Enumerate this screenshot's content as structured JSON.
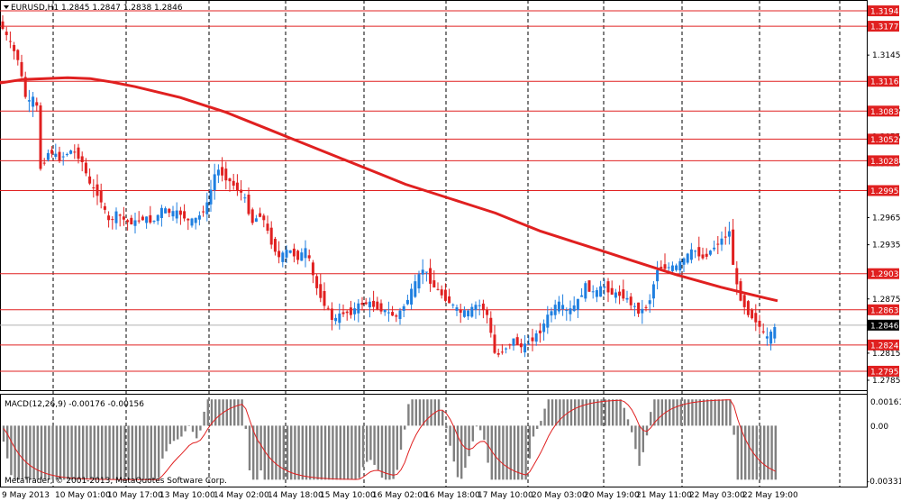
{
  "header": {
    "symbol_label": "EURUSD,H1",
    "ohlc": "1.2845 1.2847 1.2838 1.2846",
    "arrow_icon": "triangle-down-icon"
  },
  "macd": {
    "label": "MACD(12,26,9) -0.00176 -0.00156",
    "top_tick": "0.00161",
    "zero_tick": "0.00",
    "bottom_tick": "-0.00331"
  },
  "copyright": "MetaTrader, © 2001-2013, MetaQuotes Software Corp.",
  "colors": {
    "bull": "#1f7fe0",
    "bear": "#e02020",
    "ma": "#e02020",
    "level_line": "#e02020",
    "histogram": "#808080",
    "signal": "#e02020",
    "grid": "#000000"
  },
  "chart_data": {
    "type": "line",
    "title": "EURUSD,H1",
    "ylim": [
      1.2775,
      1.3204
    ],
    "price_levels": [
      {
        "value": 1.3194,
        "label": "1.3194"
      },
      {
        "value": 1.3177,
        "label": "1.3177"
      },
      {
        "value": 1.3116,
        "label": "1.3116"
      },
      {
        "value": 1.3083,
        "label": "1.3083"
      },
      {
        "value": 1.3052,
        "label": "1.3052"
      },
      {
        "value": 1.3028,
        "label": "1.3028"
      },
      {
        "value": 1.2995,
        "label": "1.2995"
      },
      {
        "value": 1.2903,
        "label": "1.2903"
      },
      {
        "value": 1.2863,
        "label": "1.2863"
      },
      {
        "value": 1.2824,
        "label": "1.2824"
      },
      {
        "value": 1.2795,
        "label": "1.2795"
      }
    ],
    "current_price": {
      "value": 1.2846,
      "label": "1.2846"
    },
    "y_ticks": [
      {
        "value": 1.3145,
        "label": "1.3145"
      },
      {
        "value": 1.3085,
        "label": "1.3085"
      },
      {
        "value": 1.3055,
        "label": "1.3055"
      },
      {
        "value": 1.3025,
        "label": "1.3025"
      },
      {
        "value": 1.2965,
        "label": "1.2965"
      },
      {
        "value": 1.2935,
        "label": "1.2935"
      },
      {
        "value": 1.2875,
        "label": "1.2875"
      },
      {
        "value": 1.2815,
        "label": "1.2815"
      },
      {
        "value": 1.2785,
        "label": "1.2785"
      }
    ],
    "x_labels": [
      "9 May 2013",
      "10 May 01:00",
      "10 May 17:00",
      "13 May 10:00",
      "14 May 02:00",
      "14 May 18:00",
      "15 May 10:00",
      "16 May 02:00",
      "16 May 18:00",
      "17 May 10:00",
      "20 May 03:00",
      "20 May 19:00",
      "21 May 11:00",
      "22 May 03:00",
      "22 May 19:00"
    ],
    "ma_path": [
      [
        0,
        1.3114
      ],
      [
        25,
        1.3118
      ],
      [
        50,
        1.3119
      ],
      [
        75,
        1.312
      ],
      [
        100,
        1.3119
      ],
      [
        125,
        1.3115
      ],
      [
        150,
        1.311
      ],
      [
        175,
        1.3104
      ],
      [
        200,
        1.3098
      ],
      [
        225,
        1.309
      ],
      [
        250,
        1.3082
      ],
      [
        275,
        1.3072
      ],
      [
        300,
        1.3062
      ],
      [
        325,
        1.3052
      ],
      [
        350,
        1.3042
      ],
      [
        375,
        1.3032
      ],
      [
        400,
        1.3022
      ],
      [
        425,
        1.3012
      ],
      [
        450,
        1.3002
      ],
      [
        475,
        1.2994
      ],
      [
        500,
        1.2986
      ],
      [
        525,
        1.2978
      ],
      [
        550,
        1.297
      ],
      [
        575,
        1.296
      ],
      [
        600,
        1.295
      ],
      [
        625,
        1.2942
      ],
      [
        650,
        1.2934
      ],
      [
        675,
        1.2926
      ],
      [
        700,
        1.2918
      ],
      [
        725,
        1.291
      ],
      [
        750,
        1.2902
      ],
      [
        775,
        1.2895
      ],
      [
        800,
        1.2888
      ],
      [
        825,
        1.2882
      ],
      [
        850,
        1.2876
      ],
      [
        863,
        1.2873
      ]
    ],
    "price_path": [
      [
        0,
        1.318
      ],
      [
        10,
        1.316
      ],
      [
        20,
        1.314
      ],
      [
        30,
        1.309
      ],
      [
        40,
        1.31
      ],
      [
        45,
        1.302
      ],
      [
        55,
        1.304
      ],
      [
        65,
        1.303
      ],
      [
        80,
        1.304
      ],
      [
        90,
        1.303
      ],
      [
        100,
        1.3
      ],
      [
        110,
        1.299
      ],
      [
        120,
        1.296
      ],
      [
        130,
        1.297
      ],
      [
        140,
        1.296
      ],
      [
        150,
        1.296
      ],
      [
        160,
        1.2965
      ],
      [
        170,
        1.296
      ],
      [
        180,
        1.2975
      ],
      [
        190,
        1.297
      ],
      [
        200,
        1.297
      ],
      [
        210,
        1.296
      ],
      [
        220,
        1.2965
      ],
      [
        230,
        1.298
      ],
      [
        240,
        1.302
      ],
      [
        250,
        1.301
      ],
      [
        260,
        1.3
      ],
      [
        270,
        1.299
      ],
      [
        280,
        1.296
      ],
      [
        290,
        1.297
      ],
      [
        300,
        1.294
      ],
      [
        310,
        1.292
      ],
      [
        320,
        1.293
      ],
      [
        330,
        1.292
      ],
      [
        340,
        1.293
      ],
      [
        350,
        1.289
      ],
      [
        360,
        1.287
      ],
      [
        370,
        1.285
      ],
      [
        380,
        1.286
      ],
      [
        390,
        1.286
      ],
      [
        400,
        1.287
      ],
      [
        410,
        1.287
      ],
      [
        420,
        1.2865
      ],
      [
        430,
        1.286
      ],
      [
        440,
        1.2855
      ],
      [
        450,
        1.287
      ],
      [
        460,
        1.289
      ],
      [
        470,
        1.291
      ],
      [
        480,
        1.289
      ],
      [
        490,
        1.288
      ],
      [
        500,
        1.287
      ],
      [
        510,
        1.286
      ],
      [
        520,
        1.286
      ],
      [
        530,
        1.287
      ],
      [
        540,
        1.286
      ],
      [
        550,
        1.281
      ],
      [
        560,
        1.282
      ],
      [
        570,
        1.283
      ],
      [
        580,
        1.282
      ],
      [
        590,
        1.283
      ],
      [
        600,
        1.284
      ],
      [
        610,
        1.286
      ],
      [
        620,
        1.287
      ],
      [
        630,
        1.286
      ],
      [
        640,
        1.287
      ],
      [
        650,
        1.289
      ],
      [
        660,
        1.288
      ],
      [
        670,
        1.289
      ],
      [
        680,
        1.288
      ],
      [
        690,
        1.288
      ],
      [
        700,
        1.287
      ],
      [
        710,
        1.286
      ],
      [
        720,
        1.287
      ],
      [
        730,
        1.291
      ],
      [
        740,
        1.291
      ],
      [
        750,
        1.291
      ],
      [
        760,
        1.292
      ],
      [
        770,
        1.293
      ],
      [
        780,
        1.292
      ],
      [
        790,
        1.293
      ],
      [
        800,
        1.294
      ],
      [
        810,
        1.295
      ],
      [
        815,
        1.29
      ],
      [
        820,
        1.288
      ],
      [
        830,
        1.286
      ],
      [
        840,
        1.285
      ],
      [
        850,
        1.283
      ],
      [
        855,
        1.2835
      ],
      [
        863,
        1.2846
      ]
    ],
    "macd_ylim": [
      -0.00331,
      0.00161
    ]
  }
}
